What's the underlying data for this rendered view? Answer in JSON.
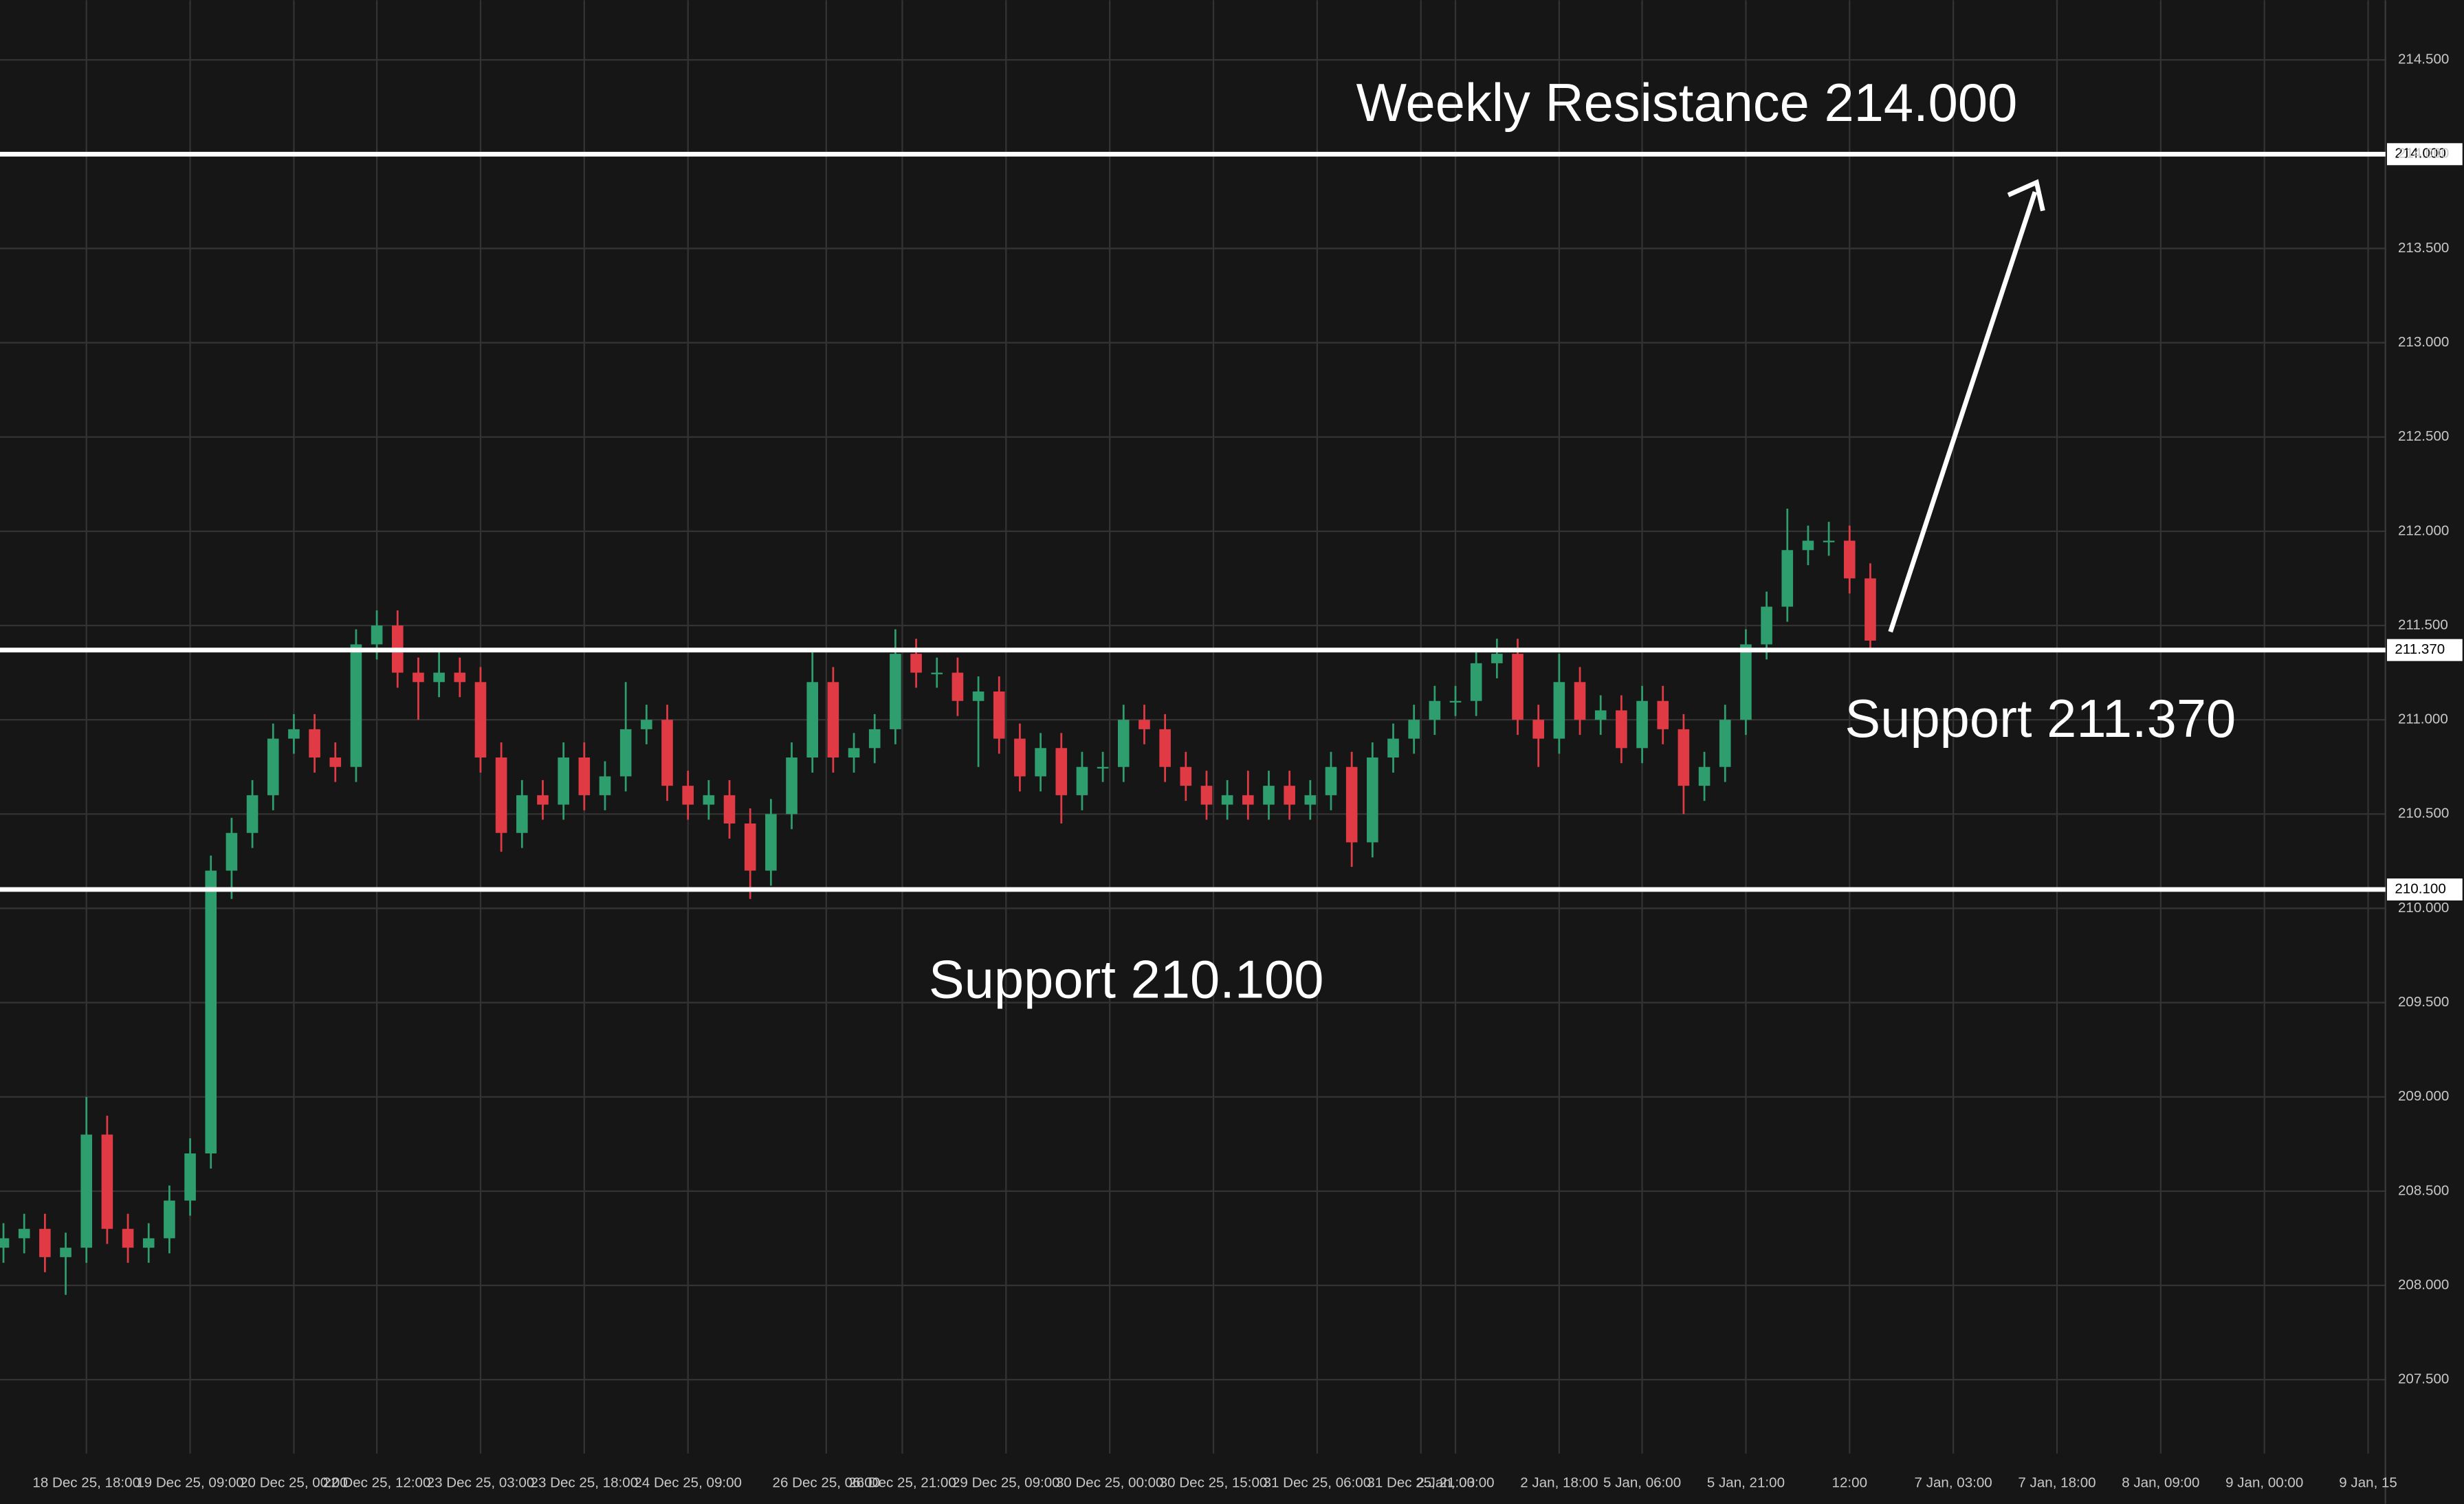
{
  "chart_data": {
    "type": "candlestick",
    "x": [
      -12,
      -9,
      -6,
      -3,
      0,
      3,
      6,
      9,
      12,
      15,
      18,
      21,
      24,
      27,
      30,
      33,
      36,
      39,
      42,
      45,
      48,
      51,
      54,
      57,
      60,
      63,
      66,
      69,
      72,
      75,
      78,
      81,
      84,
      87,
      90,
      93,
      96,
      99,
      102,
      105,
      108,
      111,
      114,
      117,
      120,
      123,
      126,
      129,
      132,
      135,
      138,
      141,
      144,
      147,
      150,
      153,
      156,
      159,
      162,
      165,
      168,
      171,
      174,
      177,
      180,
      183,
      186,
      189,
      192,
      195,
      198,
      201,
      204,
      207,
      210,
      213,
      216,
      219,
      222,
      225,
      228,
      231,
      234,
      237,
      240,
      243,
      246,
      249,
      252,
      255,
      258
    ],
    "open": [
      208.2,
      208.25,
      208.3,
      208.15,
      208.2,
      208.8,
      208.3,
      208.2,
      208.25,
      208.45,
      208.7,
      210.2,
      210.4,
      210.6,
      210.9,
      210.95,
      210.8,
      210.75,
      211.4,
      211.5,
      211.25,
      211.2,
      211.25,
      211.2,
      210.8,
      210.4,
      210.6,
      210.55,
      210.8,
      210.6,
      210.7,
      210.95,
      211.0,
      210.65,
      210.55,
      210.6,
      210.45,
      210.2,
      210.5,
      210.8,
      211.2,
      210.8,
      210.85,
      210.95,
      211.35,
      211.25,
      211.25,
      211.1,
      211.15,
      210.9,
      210.7,
      210.85,
      210.6,
      210.75,
      210.75,
      211.0,
      210.95,
      210.75,
      210.65,
      210.55,
      210.6,
      210.55,
      210.65,
      210.55,
      210.6,
      210.75,
      210.35,
      210.8,
      210.9,
      211.0,
      211.1,
      211.1,
      211.3,
      211.35,
      211.0,
      210.9,
      211.2,
      211.0,
      211.05,
      210.85,
      211.1,
      210.95,
      210.65,
      210.75,
      211.0,
      211.4,
      211.6,
      211.9,
      211.95,
      211.95,
      211.75
    ],
    "high": [
      208.33,
      208.38,
      208.38,
      208.28,
      209.0,
      208.9,
      208.38,
      208.33,
      208.53,
      208.78,
      210.28,
      210.48,
      210.68,
      210.98,
      211.03,
      211.03,
      210.88,
      211.48,
      211.58,
      211.58,
      211.33,
      211.38,
      211.33,
      211.28,
      210.88,
      210.68,
      210.68,
      210.88,
      210.88,
      210.78,
      211.2,
      211.08,
      211.08,
      210.73,
      210.68,
      210.68,
      210.53,
      210.58,
      210.88,
      211.38,
      211.28,
      210.93,
      211.03,
      211.48,
      211.43,
      211.33,
      211.33,
      211.23,
      211.23,
      210.98,
      210.93,
      210.93,
      210.83,
      210.83,
      211.08,
      211.08,
      211.03,
      210.83,
      210.73,
      210.68,
      210.73,
      210.73,
      210.73,
      210.68,
      210.83,
      210.83,
      210.88,
      210.98,
      211.08,
      211.18,
      211.18,
      211.38,
      211.43,
      211.43,
      211.08,
      211.35,
      211.28,
      211.13,
      211.13,
      211.18,
      211.18,
      211.03,
      210.83,
      211.08,
      211.48,
      211.68,
      212.12,
      212.03,
      212.05,
      212.03,
      211.83
    ],
    "low": [
      208.12,
      208.17,
      208.07,
      207.95,
      208.12,
      208.22,
      208.12,
      208.12,
      208.17,
      208.37,
      208.62,
      210.05,
      210.32,
      210.52,
      210.82,
      210.72,
      210.67,
      210.67,
      211.32,
      211.17,
      211.0,
      211.12,
      211.12,
      210.72,
      210.3,
      210.32,
      210.47,
      210.47,
      210.52,
      210.52,
      210.62,
      210.87,
      210.57,
      210.47,
      210.47,
      210.37,
      210.05,
      210.12,
      210.42,
      210.72,
      210.72,
      210.72,
      210.77,
      210.87,
      211.17,
      211.17,
      211.02,
      210.75,
      210.82,
      210.62,
      210.62,
      210.45,
      210.52,
      210.67,
      210.67,
      210.87,
      210.67,
      210.57,
      210.47,
      210.47,
      210.47,
      210.47,
      210.47,
      210.47,
      210.52,
      210.22,
      210.27,
      210.72,
      210.82,
      210.92,
      211.02,
      211.02,
      211.22,
      210.92,
      210.75,
      210.82,
      210.92,
      210.92,
      210.77,
      210.77,
      210.87,
      210.5,
      210.57,
      210.67,
      210.92,
      211.32,
      211.52,
      211.82,
      211.87,
      211.67,
      211.38
    ],
    "close": [
      208.25,
      208.3,
      208.15,
      208.2,
      208.8,
      208.3,
      208.2,
      208.25,
      208.45,
      208.7,
      210.2,
      210.4,
      210.6,
      210.9,
      210.95,
      210.8,
      210.75,
      211.4,
      211.5,
      211.25,
      211.2,
      211.25,
      211.2,
      210.8,
      210.4,
      210.6,
      210.55,
      210.8,
      210.6,
      210.7,
      210.95,
      211.0,
      210.65,
      210.55,
      210.6,
      210.45,
      210.2,
      210.5,
      210.8,
      211.2,
      210.8,
      210.85,
      210.95,
      211.35,
      211.25,
      211.25,
      211.1,
      211.15,
      210.9,
      210.7,
      210.85,
      210.6,
      210.75,
      210.75,
      211.0,
      210.95,
      210.75,
      210.65,
      210.55,
      210.6,
      210.55,
      210.65,
      210.55,
      210.6,
      210.75,
      210.35,
      210.8,
      210.9,
      211.0,
      211.1,
      211.1,
      211.3,
      211.35,
      211.0,
      210.9,
      211.2,
      211.0,
      211.05,
      210.85,
      211.1,
      210.95,
      210.65,
      210.75,
      211.0,
      211.4,
      211.6,
      211.9,
      211.95,
      211.95,
      211.75,
      211.42
    ],
    "up_color": "#2f9e6e",
    "down_color": "#e03b45",
    "xlim": [
      -12.5,
      332.5
    ],
    "xticks": [
      {
        "value": 0,
        "label": "18 Dec 25, 18:00"
      },
      {
        "value": 15,
        "label": "19 Dec 25, 09:00"
      },
      {
        "value": 30,
        "label": "20 Dec 25, 00:00"
      },
      {
        "value": 42,
        "label": "22 Dec 25, 12:00"
      },
      {
        "value": 57,
        "label": "23 Dec 25, 03:00"
      },
      {
        "value": 72,
        "label": "23 Dec 25, 18:00"
      },
      {
        "value": 87,
        "label": "24 Dec 25, 09:00"
      },
      {
        "value": 107,
        "label": "26 Dec 25, 06:00"
      },
      {
        "value": 118,
        "label": "26 Dec 25, 21:00"
      },
      {
        "value": 133,
        "label": "29 Dec 25, 09:00"
      },
      {
        "value": 148,
        "label": "30 Dec 25, 00:00"
      },
      {
        "value": 163,
        "label": "30 Dec 25, 15:00"
      },
      {
        "value": 178,
        "label": "31 Dec 25, 06:00"
      },
      {
        "value": 193,
        "label": "31 Dec 25, 21:00"
      },
      {
        "value": 198,
        "label": "2 Jan, 03:00"
      },
      {
        "value": 213,
        "label": "2 Jan, 18:00"
      },
      {
        "value": 225,
        "label": "5 Jan, 06:00"
      },
      {
        "value": 240,
        "label": "5 Jan, 21:00"
      },
      {
        "value": 255,
        "label": "12:00"
      },
      {
        "value": 270,
        "label": "7 Jan, 03:00"
      },
      {
        "value": 285,
        "label": "7 Jan, 18:00"
      },
      {
        "value": 300,
        "label": "8 Jan, 09:00"
      },
      {
        "value": 315,
        "label": "9 Jan, 00:00"
      },
      {
        "value": 330,
        "label": "9 Jan, 15"
      }
    ],
    "ylim": [
      207.275,
      214.8167
    ],
    "yticks": [
      {
        "value": 207.5,
        "label": "207.500"
      },
      {
        "value": 208,
        "label": "208.000"
      },
      {
        "value": 208.5,
        "label": "208.500"
      },
      {
        "value": 209,
        "label": "209.000"
      },
      {
        "value": 209.5,
        "label": "209.500"
      },
      {
        "value": 210,
        "label": "210.000"
      },
      {
        "value": 210.5,
        "label": "210.500"
      },
      {
        "value": 211,
        "label": "211.000"
      },
      {
        "value": 211.5,
        "label": "211.500"
      },
      {
        "value": 212,
        "label": "212.000"
      },
      {
        "value": 212.5,
        "label": "212.500"
      },
      {
        "value": 213,
        "label": "213.000"
      },
      {
        "value": 213.5,
        "label": "213.500"
      },
      {
        "value": 214,
        "label": "214.000"
      },
      {
        "value": 214.5,
        "label": "214.500"
      }
    ],
    "grid": true,
    "levels": [
      {
        "value": 214,
        "label": "214.000"
      },
      {
        "value": 211.37,
        "label": "211.370"
      },
      {
        "value": 210.1,
        "label": "210.100"
      }
    ],
    "annotations": [
      "Weekly Resistance 214.000",
      "Support 211.370",
      "Support 210.100"
    ]
  }
}
